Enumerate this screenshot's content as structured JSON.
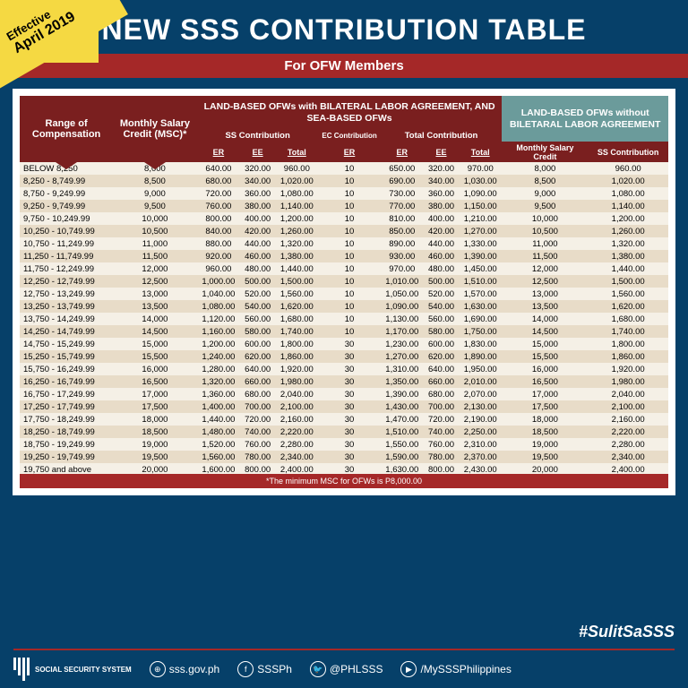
{
  "effective": {
    "label": "Effective",
    "date": "April 2019"
  },
  "title": "NEW SSS CONTRIBUTION TABLE",
  "subtitle": "For OFW Members",
  "groups": {
    "range": "Range of Compensation",
    "msc": "Monthly Salary Credit (MSC)*",
    "withBLA": "LAND-BASED OFWs with BILATERAL LABOR AGREEMENT, AND SEA-BASED OFWs",
    "withoutBLA": "LAND-BASED OFWs without BILETARAL LABOR AGREEMENT"
  },
  "subheads": {
    "ss": "SS Contribution",
    "ec": "EC Contribution",
    "total": "Total Contribution",
    "er": "ER",
    "ee": "EE",
    "tot": "Total",
    "msc2": "Monthly Salary Credit",
    "ss2": "SS Contribution"
  },
  "footnote": "*The minimum MSC for OFWs is P8,000.00",
  "hashtag": "#SulitSaSSS",
  "footer": {
    "org": "SOCIAL SECURITY SYSTEM",
    "web": "sss.gov.ph",
    "fb": "SSSPh",
    "tw": "@PHLSSS",
    "yt": "/MySSSPhilippines"
  },
  "colors": {
    "navy": "#064069",
    "maroon": "#7a1f1f",
    "redbar": "#a52828",
    "teal": "#6b9b9b",
    "rowEven": "#e8dcc8",
    "rowOdd": "#f5f0e6",
    "yellow": "#f5d942"
  },
  "table": {
    "columns": [
      "range",
      "msc",
      "ss_er",
      "ss_ee",
      "ss_total",
      "ec_er",
      "tot_er",
      "tot_ee",
      "tot_total",
      "msc2",
      "ss2"
    ],
    "rows": [
      [
        "BELOW 8,250",
        "8,000",
        "640.00",
        "320.00",
        "960.00",
        "10",
        "650.00",
        "320.00",
        "970.00",
        "8,000",
        "960.00"
      ],
      [
        "8,250   -   8,749.99",
        "8,500",
        "680.00",
        "340.00",
        "1,020.00",
        "10",
        "690.00",
        "340.00",
        "1,030.00",
        "8,500",
        "1,020.00"
      ],
      [
        "8,750   -   9,249.99",
        "9,000",
        "720.00",
        "360.00",
        "1,080.00",
        "10",
        "730.00",
        "360.00",
        "1,090.00",
        "9,000",
        "1,080.00"
      ],
      [
        "9,250   -   9,749.99",
        "9,500",
        "760.00",
        "380.00",
        "1,140.00",
        "10",
        "770.00",
        "380.00",
        "1,150.00",
        "9,500",
        "1,140.00"
      ],
      [
        "9,750   - 10,249.99",
        "10,000",
        "800.00",
        "400.00",
        "1,200.00",
        "10",
        "810.00",
        "400.00",
        "1,210.00",
        "10,000",
        "1,200.00"
      ],
      [
        "10,250 - 10,749.99",
        "10,500",
        "840.00",
        "420.00",
        "1,260.00",
        "10",
        "850.00",
        "420.00",
        "1,270.00",
        "10,500",
        "1,260.00"
      ],
      [
        "10,750 - 11,249.99",
        "11,000",
        "880.00",
        "440.00",
        "1,320.00",
        "10",
        "890.00",
        "440.00",
        "1,330.00",
        "11,000",
        "1,320.00"
      ],
      [
        "11,250 - 11,749.99",
        "11,500",
        "920.00",
        "460.00",
        "1,380.00",
        "10",
        "930.00",
        "460.00",
        "1,390.00",
        "11,500",
        "1,380.00"
      ],
      [
        "11,750 - 12,249.99",
        "12,000",
        "960.00",
        "480.00",
        "1,440.00",
        "10",
        "970.00",
        "480.00",
        "1,450.00",
        "12,000",
        "1,440.00"
      ],
      [
        "12,250 - 12,749.99",
        "12,500",
        "1,000.00",
        "500.00",
        "1,500.00",
        "10",
        "1,010.00",
        "500.00",
        "1,510.00",
        "12,500",
        "1,500.00"
      ],
      [
        "12,750 - 13,249.99",
        "13,000",
        "1,040.00",
        "520.00",
        "1,560.00",
        "10",
        "1,050.00",
        "520.00",
        "1,570.00",
        "13,000",
        "1,560.00"
      ],
      [
        "13,250 - 13,749.99",
        "13,500",
        "1,080.00",
        "540.00",
        "1,620.00",
        "10",
        "1,090.00",
        "540.00",
        "1,630.00",
        "13,500",
        "1,620.00"
      ],
      [
        "13,750 - 14,249.99",
        "14,000",
        "1,120.00",
        "560.00",
        "1,680.00",
        "10",
        "1,130.00",
        "560.00",
        "1,690.00",
        "14,000",
        "1,680.00"
      ],
      [
        "14,250 - 14,749.99",
        "14,500",
        "1,160.00",
        "580.00",
        "1,740.00",
        "10",
        "1,170.00",
        "580.00",
        "1,750.00",
        "14,500",
        "1,740.00"
      ],
      [
        "14,750 - 15,249.99",
        "15,000",
        "1,200.00",
        "600.00",
        "1,800.00",
        "30",
        "1,230.00",
        "600.00",
        "1,830.00",
        "15,000",
        "1,800.00"
      ],
      [
        "15,250 - 15,749.99",
        "15,500",
        "1,240.00",
        "620.00",
        "1,860.00",
        "30",
        "1,270.00",
        "620.00",
        "1,890.00",
        "15,500",
        "1,860.00"
      ],
      [
        "15,750 - 16,249.99",
        "16,000",
        "1,280.00",
        "640.00",
        "1,920.00",
        "30",
        "1,310.00",
        "640.00",
        "1,950.00",
        "16,000",
        "1,920.00"
      ],
      [
        "16,250 - 16,749.99",
        "16,500",
        "1,320.00",
        "660.00",
        "1,980.00",
        "30",
        "1,350.00",
        "660.00",
        "2,010.00",
        "16,500",
        "1,980.00"
      ],
      [
        "16,750 - 17,249.99",
        "17,000",
        "1,360.00",
        "680.00",
        "2,040.00",
        "30",
        "1,390.00",
        "680.00",
        "2,070.00",
        "17,000",
        "2,040.00"
      ],
      [
        "17,250 - 17,749.99",
        "17,500",
        "1,400.00",
        "700.00",
        "2,100.00",
        "30",
        "1,430.00",
        "700.00",
        "2,130.00",
        "17,500",
        "2,100.00"
      ],
      [
        "17,750 - 18,249.99",
        "18,000",
        "1,440.00",
        "720.00",
        "2,160.00",
        "30",
        "1,470.00",
        "720.00",
        "2,190.00",
        "18,000",
        "2,160.00"
      ],
      [
        "18,250 - 18,749.99",
        "18,500",
        "1,480.00",
        "740.00",
        "2,220.00",
        "30",
        "1,510.00",
        "740.00",
        "2,250.00",
        "18,500",
        "2,220.00"
      ],
      [
        "18,750 - 19,249.99",
        "19,000",
        "1,520.00",
        "760.00",
        "2,280.00",
        "30",
        "1,550.00",
        "760.00",
        "2,310.00",
        "19,000",
        "2,280.00"
      ],
      [
        "19,250 - 19,749.99",
        "19,500",
        "1,560.00",
        "780.00",
        "2,340.00",
        "30",
        "1,590.00",
        "780.00",
        "2,370.00",
        "19,500",
        "2,340.00"
      ],
      [
        "19,750 and above",
        "20,000",
        "1,600.00",
        "800.00",
        "2,400.00",
        "30",
        "1,630.00",
        "800.00",
        "2,430.00",
        "20,000",
        "2,400.00"
      ]
    ]
  }
}
